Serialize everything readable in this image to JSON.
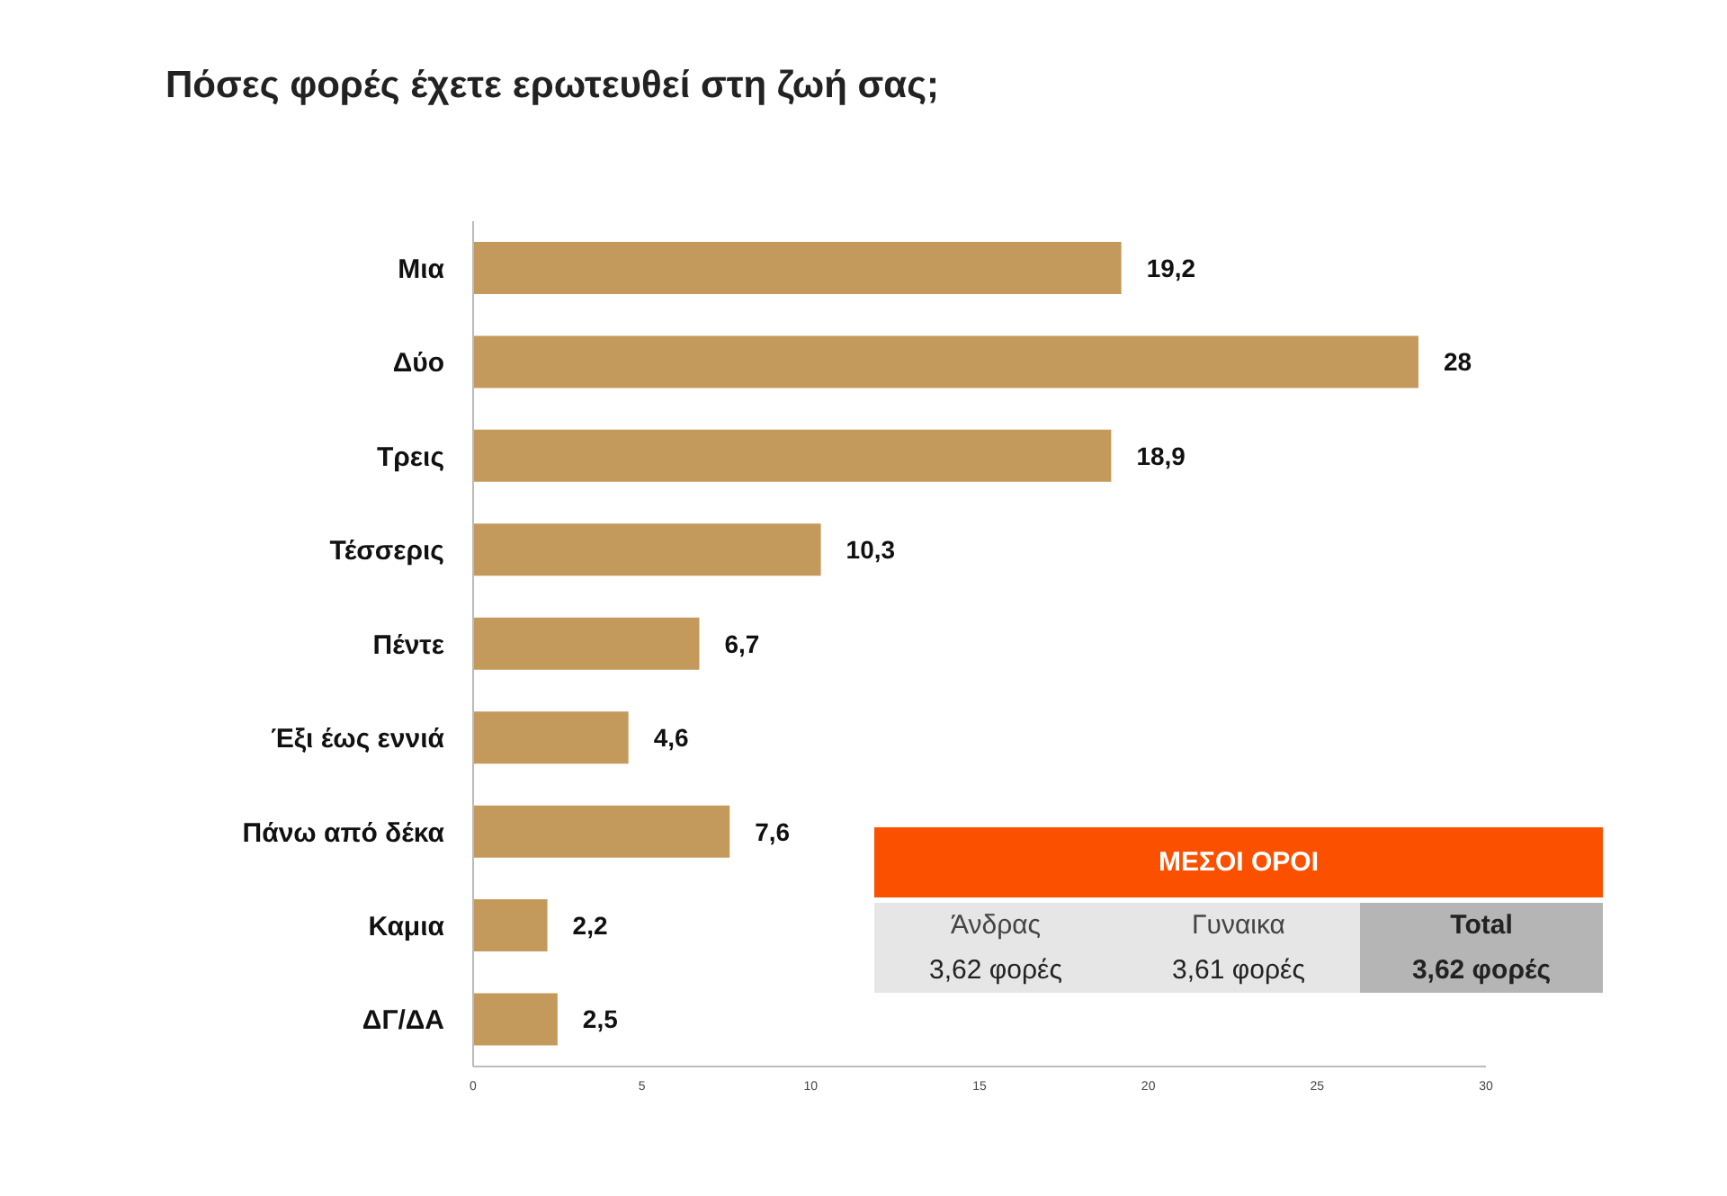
{
  "chart_data": {
    "type": "bar",
    "orientation": "horizontal",
    "title": "Πόσες φορές έχετε ερωτευθεί στη ζωή σας;",
    "categories": [
      "Μια",
      "Δύο",
      "Τρεις",
      "Τέσσερις",
      "Πέντε",
      "Έξι έως εννιά",
      "Πάνω από δέκα",
      "Καμια",
      "ΔΓ/ΔΑ"
    ],
    "values": [
      19.2,
      28,
      18.9,
      10.3,
      6.7,
      4.6,
      7.6,
      2.2,
      2.5
    ],
    "value_labels": [
      "19,2",
      "28",
      "18,9",
      "10,3",
      "6,7",
      "4,6",
      "7,6",
      "2,2",
      "2,5"
    ],
    "color": "#c49a5c",
    "xlim": [
      0,
      30
    ],
    "xticks": [
      0,
      5,
      10,
      15,
      20,
      25,
      30
    ],
    "annotations": [
      "ΜΕΣΟΙ ΟΡΟΙ",
      "Άνδρας",
      "Γυναικα",
      "Total",
      "3,62 φορές",
      "3,61 φορές",
      "3,62 φορές"
    ]
  }
}
